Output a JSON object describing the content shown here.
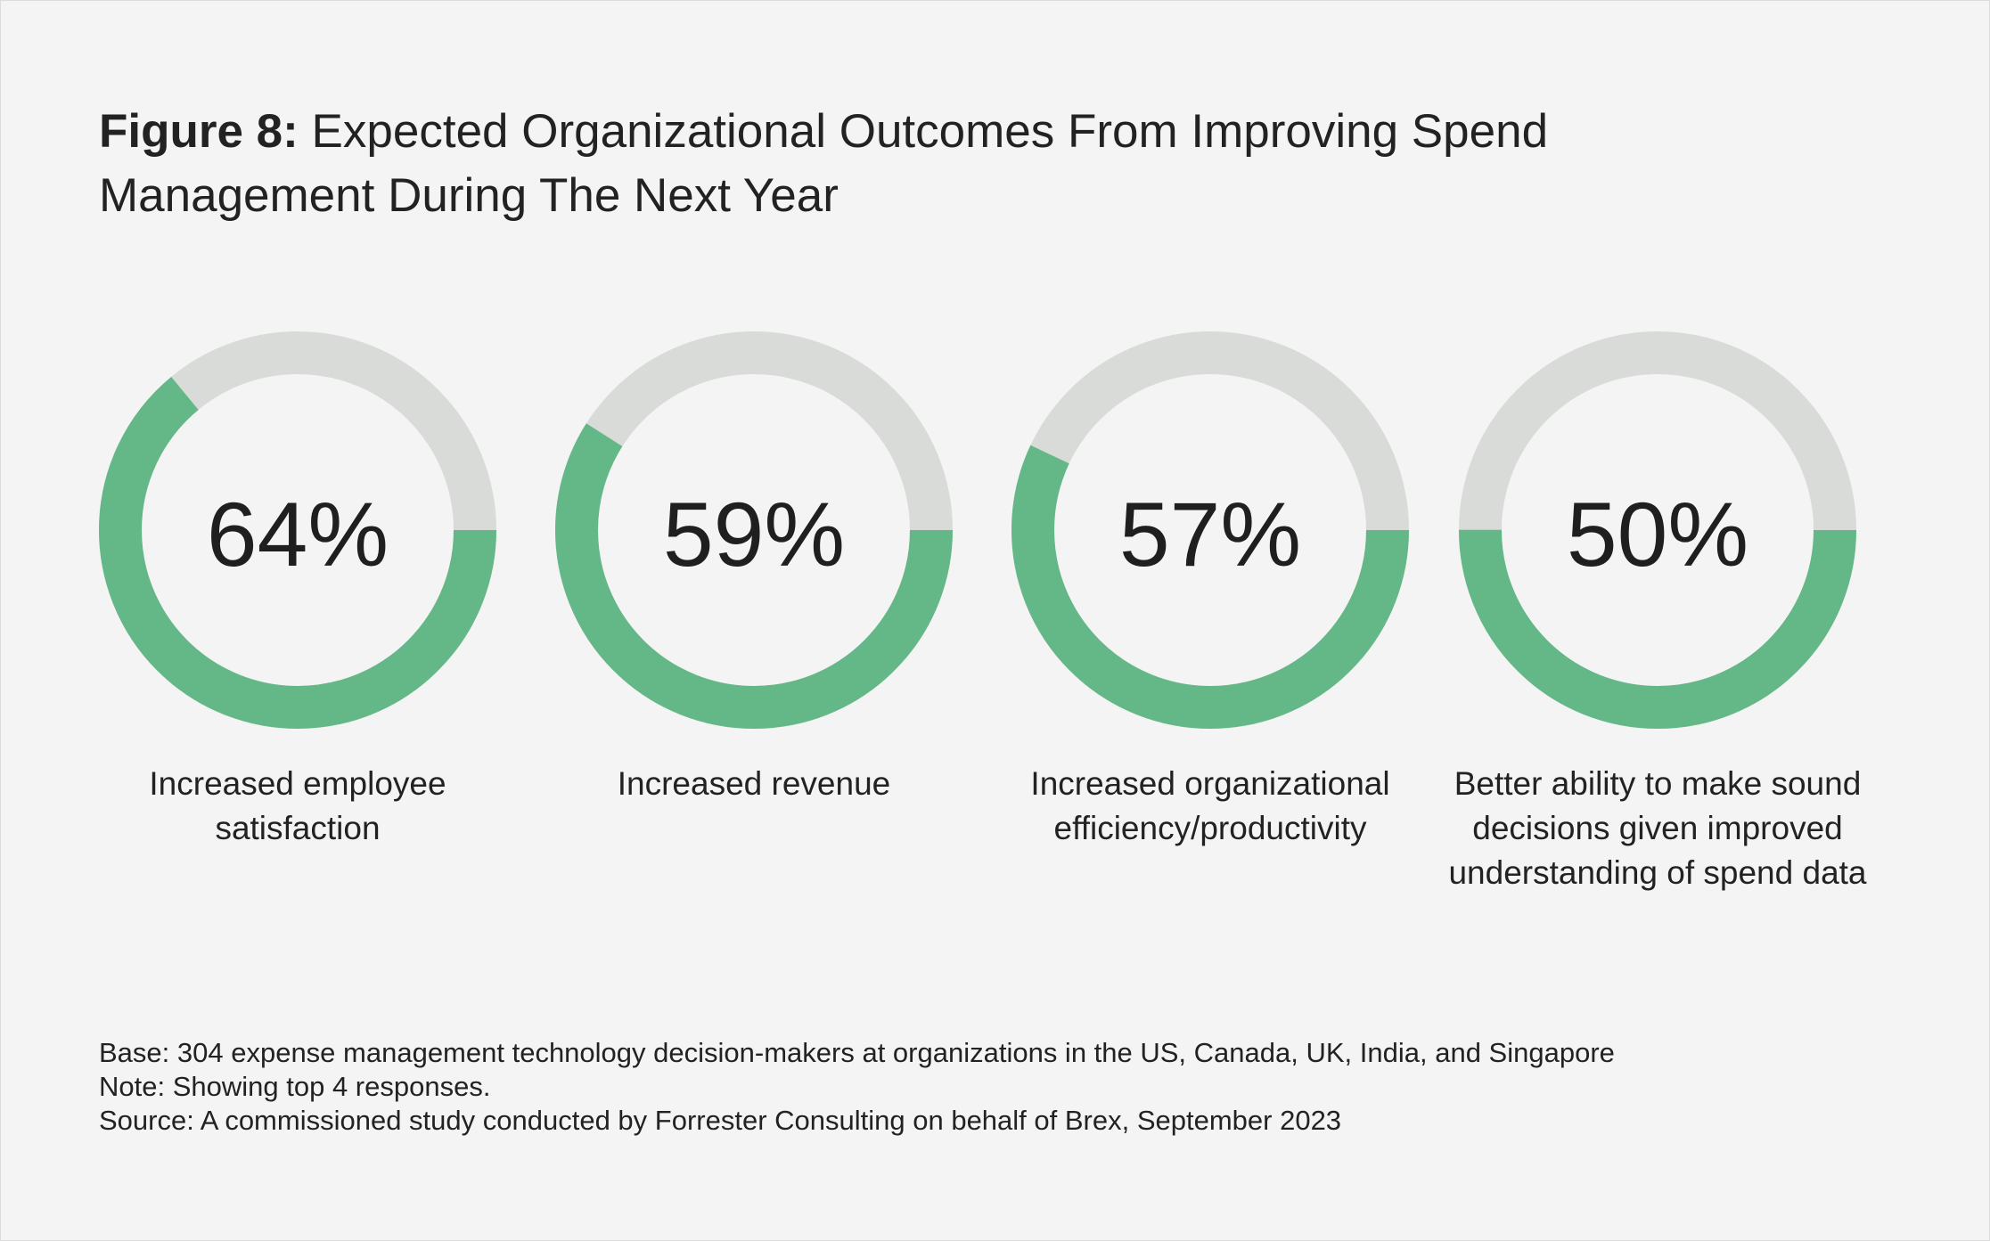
{
  "title": {
    "figure_label": "Figure 8:",
    "text": "Expected Organizational Outcomes From Improving Spend Management During The Next Year"
  },
  "colors": {
    "filled": "#64b887",
    "remaining": "#d9dbd9",
    "background": "#f4f4f4"
  },
  "chart_data": {
    "type": "donut",
    "unit": "%",
    "categories": [
      "Increased employee satisfaction",
      "Increased revenue",
      "Increased organizational efficiency/productivity",
      "Better ability to make sound decisions given improved understanding of spend data"
    ],
    "values": [
      64,
      59,
      57,
      50
    ],
    "value_labels": [
      "64%",
      "59%",
      "57%",
      "50%"
    ]
  },
  "notes": {
    "base": "Base: 304 expense management technology decision-makers at organizations in the US, Canada, UK, India, and Singapore",
    "note": "Note: Showing top 4 responses.",
    "source": "Source: A commissioned study conducted by Forrester Consulting on behalf of Brex, September 2023"
  }
}
